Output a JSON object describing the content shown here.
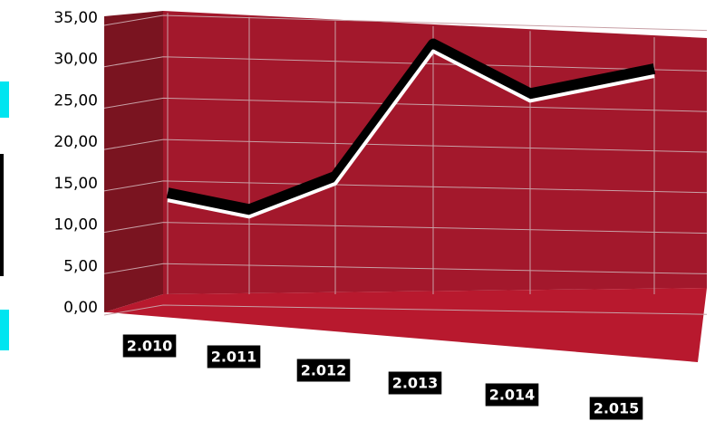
{
  "chart_data": {
    "type": "line",
    "categories": [
      "2.010",
      "2.011",
      "2.012",
      "2.013",
      "2.014",
      "2.015"
    ],
    "values": [
      13,
      11,
      15,
      31,
      25,
      28
    ],
    "color": "#ffffff",
    "ylim": [
      0,
      35
    ],
    "yticks": [
      {
        "value": 0,
        "label": "0,00"
      },
      {
        "value": 5,
        "label": "5,00"
      },
      {
        "value": 10,
        "label": "10,00"
      },
      {
        "value": 15,
        "label": "15,00"
      },
      {
        "value": 20,
        "label": "20,00"
      },
      {
        "value": 25,
        "label": "25,00"
      },
      {
        "value": 30,
        "label": "30,00"
      },
      {
        "value": 35,
        "label": "35,00"
      }
    ],
    "grid": true
  }
}
